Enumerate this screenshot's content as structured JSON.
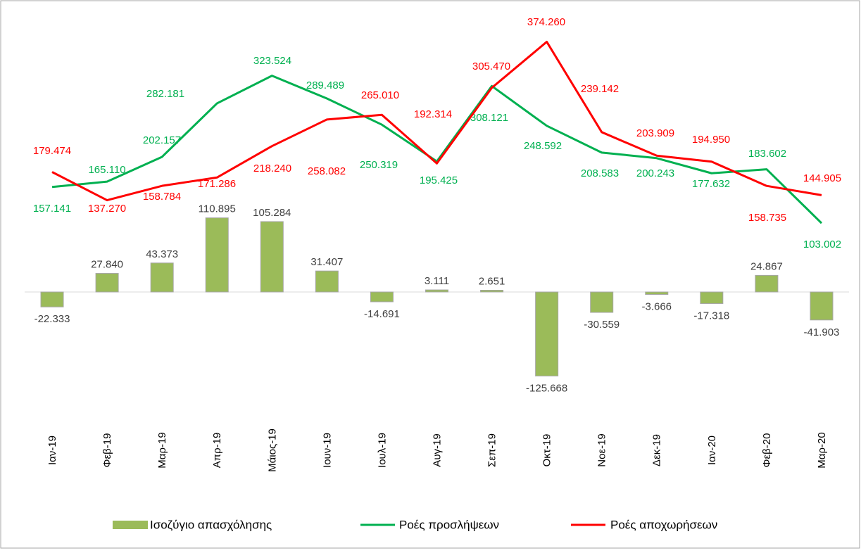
{
  "chart_data": {
    "type": "combo",
    "categories": [
      "Ιαν-19",
      "Φεβ-19",
      "Μαρ-19",
      "Απρ-19",
      "Μάιος-19",
      "Ιουν-19",
      "Ιουλ-19",
      "Αυγ-19",
      "Σεπ-19",
      "Οκτ-19",
      "Νοε-19",
      "Δεκ-19",
      "Ιαν-20",
      "Φεβ-20",
      "Μαρ-20"
    ],
    "series": [
      {
        "name": "Ισοζύγιο απασχόλησης",
        "type": "bar",
        "color": "#9bbb59",
        "values": [
          -22333,
          27840,
          43373,
          110895,
          105284,
          31407,
          -14691,
          3111,
          2651,
          -125668,
          -30559,
          -3666,
          -17318,
          24867,
          -41903
        ],
        "value_labels": [
          "-22.333",
          "27.840",
          "43.373",
          "110.895",
          "105.284",
          "31.407",
          "-14.691",
          "3.111",
          "2.651",
          "-125.668",
          "-30.559",
          "-3.666",
          "-17.318",
          "24.867",
          "-41.903"
        ]
      },
      {
        "name": "Ροές προσλήψεων",
        "type": "line",
        "color": "#00b050",
        "values": [
          157141,
          165110,
          202157,
          282181,
          323524,
          289489,
          250319,
          195425,
          308121,
          248592,
          208583,
          200243,
          177632,
          183602,
          103002
        ],
        "value_labels": [
          "157.141",
          "165.110",
          "202.157",
          "282.181",
          "323.524",
          "289.489",
          "250.319",
          "195.425",
          "308.121",
          "248.592",
          "208.583",
          "200.243",
          "177.632",
          "183.602",
          "103.002"
        ]
      },
      {
        "name": "Ροές αποχωρήσεων",
        "type": "line",
        "color": "#ff0000",
        "values": [
          179474,
          137270,
          158784,
          171286,
          218240,
          258082,
          265010,
          192314,
          305470,
          374260,
          239142,
          203909,
          194950,
          158735,
          144905
        ],
        "value_labels": [
          "179.474",
          "137.270",
          "158.784",
          "171.286",
          "218.240",
          "258.082",
          "265.010",
          "192.314",
          "305.470",
          "374.260",
          "239.142",
          "203.909",
          "194.950",
          "158.735",
          "144.905"
        ]
      }
    ]
  }
}
